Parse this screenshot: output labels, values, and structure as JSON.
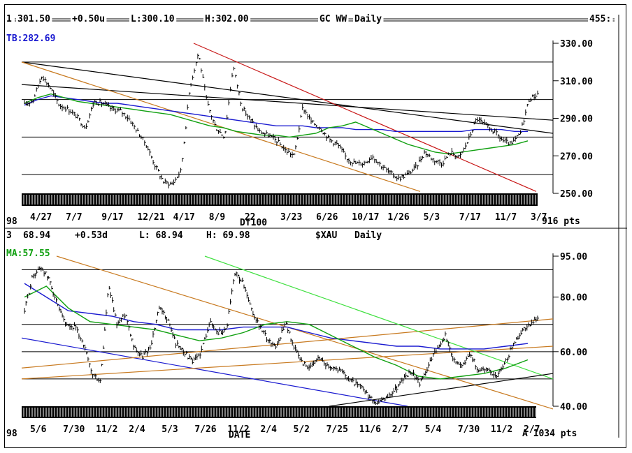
{
  "chart_data": [
    {
      "type": "line",
      "panel_number": "1",
      "header": {
        "last": "301.50",
        "change": "+0.50u",
        "low": "L:300.10",
        "high": "H:302.00",
        "symbol": "GC WW",
        "period": "Daily",
        "right_value": "455:"
      },
      "indicator_label": "TB:282.69",
      "indicator_color": "#1a1ad0",
      "y_axis": {
        "range": [
          250,
          330
        ],
        "ticks": [
          "330.00",
          "310.00",
          "290.00",
          "270.00",
          "250.00"
        ],
        "tick_values": [
          330,
          310,
          290,
          270,
          250
        ]
      },
      "x_start_label": "98",
      "x_tick_labels": [
        "4/27",
        "7/7",
        "9/17",
        "12/21",
        "4/17",
        "8/9",
        "22",
        "3/23",
        "6/26",
        "10/17",
        "1/26",
        "5/3",
        "7/17",
        "11/7",
        "3/7"
      ],
      "x_center_label": "Df100",
      "points_label": "916 pts",
      "series": [
        {
          "name": "TB",
          "color": "#1a1ad0",
          "values": [
            297,
            300,
            302,
            301,
            300,
            299,
            298,
            298,
            297,
            296,
            295,
            294,
            293,
            292,
            291,
            290,
            289,
            288,
            287,
            286,
            286,
            286,
            285,
            285,
            285,
            284,
            284,
            284,
            283,
            283,
            283,
            283,
            283,
            283,
            284,
            284,
            284,
            283,
            283
          ]
        },
        {
          "name": "MA",
          "color": "#10a010",
          "values": [
            298,
            301,
            303,
            301,
            299,
            298,
            297,
            296,
            295,
            294,
            293,
            292,
            290,
            288,
            286,
            285,
            283,
            282,
            281,
            281,
            280,
            281,
            282,
            285,
            286,
            288,
            285,
            282,
            279,
            276,
            274,
            272,
            271,
            272,
            273,
            274,
            275,
            276,
            278
          ]
        }
      ],
      "price_path": [
        297,
        300,
        313,
        306,
        297,
        295,
        291,
        285,
        299,
        298,
        295,
        294,
        290,
        283,
        276,
        265,
        256,
        255,
        262,
        306,
        325,
        298,
        285,
        280,
        318,
        296,
        289,
        283,
        281,
        278,
        273,
        270,
        296,
        288,
        285,
        279,
        276,
        269,
        266,
        266,
        270,
        265,
        261,
        258,
        260,
        264,
        272,
        268,
        266,
        272,
        269,
        278,
        290,
        286,
        283,
        278,
        276,
        282,
        300,
        303
      ]
    },
    {
      "type": "line",
      "panel_number": "3",
      "header": {
        "last": "68.94",
        "change": "+0.53d",
        "low": "L: 68.94",
        "high": "H: 69.98",
        "symbol": "$XAU",
        "period": "Daily"
      },
      "indicator_label": "MA:57.55",
      "indicator_color": "#10a010",
      "y_axis": {
        "range": [
          40,
          95
        ],
        "ticks": [
          "95.00",
          "80.00",
          "60.00",
          "40.00"
        ],
        "tick_values": [
          95,
          80,
          60,
          40
        ]
      },
      "x_start_label": "98",
      "x_tick_labels": [
        "5/6",
        "7/30",
        "11/2",
        "2/4",
        "5/3",
        "7/26",
        "11/2",
        "2/4",
        "5/2",
        "7/25",
        "11/6",
        "2/7",
        "5/4",
        "7/30",
        "11/2",
        "2/7"
      ],
      "x_center_label": "DATE",
      "points_label": "A 1034 pts",
      "series": [
        {
          "name": "MA long",
          "color": "#1a1ad0",
          "values": [
            85,
            80,
            75,
            74,
            73,
            71,
            70,
            68,
            68,
            68,
            69,
            69,
            69,
            67,
            65,
            64,
            63,
            62,
            62,
            61,
            61,
            61,
            62,
            63
          ]
        },
        {
          "name": "MA",
          "color": "#10a010",
          "values": [
            80,
            84,
            76,
            71,
            70,
            69,
            68,
            66,
            64,
            65,
            67,
            70,
            71,
            70,
            66,
            62,
            58,
            55,
            51,
            50,
            51,
            52,
            54,
            57
          ]
        }
      ],
      "price_path": [
        75,
        88,
        91,
        86,
        76,
        69,
        69,
        63,
        52,
        49,
        84,
        70,
        74,
        62,
        58,
        62,
        76,
        72,
        63,
        60,
        56,
        60,
        71,
        67,
        68,
        89,
        85,
        75,
        69,
        64,
        62,
        71,
        62,
        56,
        54,
        58,
        55,
        54,
        52,
        49,
        47,
        43,
        41,
        43,
        46,
        50,
        53,
        48,
        55,
        61,
        66,
        57,
        55,
        59,
        53,
        54,
        51,
        55,
        62,
        67,
        70,
        72
      ]
    }
  ]
}
